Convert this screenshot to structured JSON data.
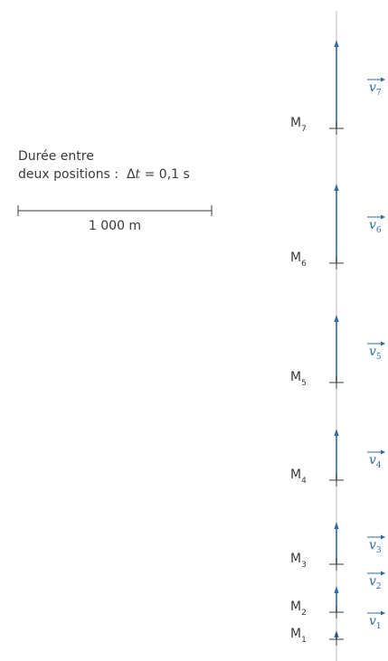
{
  "timing": {
    "line1": "Durée entre",
    "line2_prefix": "deux positions :",
    "delta": "Δ",
    "t": "t",
    "equals_value": "= 0,1 s"
  },
  "scale": {
    "label": "1 000 m"
  },
  "positions": [
    {
      "point": "M",
      "index": "1",
      "vector": "v",
      "vector_index": "1"
    },
    {
      "point": "M",
      "index": "2",
      "vector": "v",
      "vector_index": "2"
    },
    {
      "point": "M",
      "index": "3",
      "vector": "v",
      "vector_index": "3"
    },
    {
      "point": "M",
      "index": "4",
      "vector": "v",
      "vector_index": "4"
    },
    {
      "point": "M",
      "index": "5",
      "vector": "v",
      "vector_index": "5"
    },
    {
      "point": "M",
      "index": "6",
      "vector": "v",
      "vector_index": "6"
    },
    {
      "point": "M",
      "index": "7",
      "vector": "v",
      "vector_index": "7"
    }
  ],
  "colors": {
    "vector": "#2f6aa3",
    "axis": "#bdbdbd",
    "text": "#3a3a3a"
  }
}
